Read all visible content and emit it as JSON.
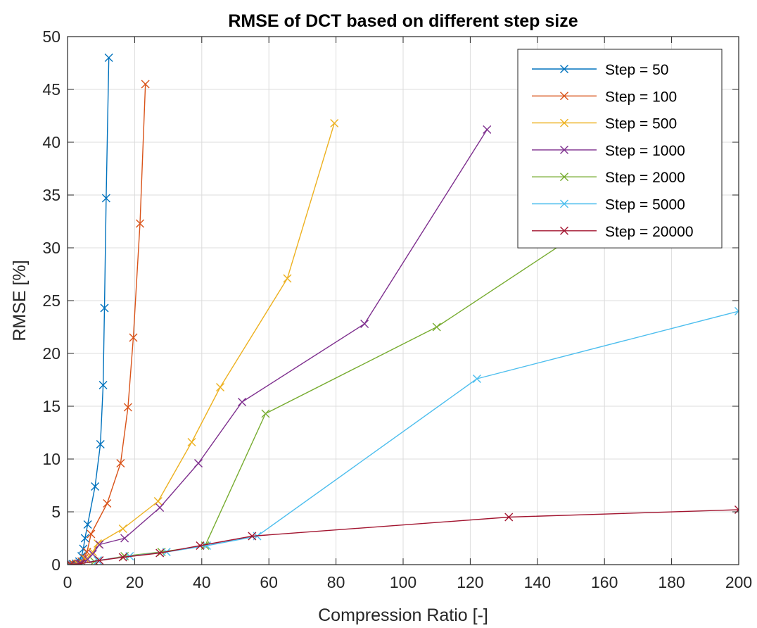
{
  "chart_data": {
    "type": "line",
    "title": "RMSE of DCT based on different step size",
    "xlabel": "Compression Ratio [-]",
    "ylabel": "RMSE [%]",
    "xlim": [
      0,
      200
    ],
    "ylim": [
      0,
      50
    ],
    "xticks": [
      0,
      20,
      40,
      60,
      80,
      100,
      120,
      140,
      160,
      180,
      200
    ],
    "yticks": [
      0,
      5,
      10,
      15,
      20,
      25,
      30,
      35,
      40,
      45,
      50
    ],
    "grid": true,
    "legend_position": "top-right",
    "marker": "x",
    "series": [
      {
        "name": "Step = 50",
        "color": "#0072BD",
        "points": [
          [
            0.5,
            0.02
          ],
          [
            1.5,
            0.05
          ],
          [
            2.5,
            0.1
          ],
          [
            3.5,
            0.3
          ],
          [
            4.2,
            0.8
          ],
          [
            4.7,
            1.5
          ],
          [
            5.2,
            2.5
          ],
          [
            6.0,
            3.8
          ],
          [
            8.2,
            7.4
          ],
          [
            9.8,
            11.4
          ],
          [
            10.6,
            17.0
          ],
          [
            11.0,
            24.3
          ],
          [
            11.5,
            34.7
          ],
          [
            12.3,
            48.0
          ]
        ]
      },
      {
        "name": "Step = 100",
        "color": "#D95319",
        "points": [
          [
            0.7,
            0.02
          ],
          [
            1.8,
            0.05
          ],
          [
            3.0,
            0.1
          ],
          [
            4.2,
            0.3
          ],
          [
            5.0,
            0.6
          ],
          [
            5.8,
            1.2
          ],
          [
            7.0,
            2.9
          ],
          [
            11.8,
            5.8
          ],
          [
            15.8,
            9.6
          ],
          [
            18.0,
            14.9
          ],
          [
            19.6,
            21.5
          ],
          [
            21.6,
            32.3
          ],
          [
            23.2,
            45.5
          ]
        ]
      },
      {
        "name": "Step = 500",
        "color": "#EDB120",
        "points": [
          [
            1.0,
            0.02
          ],
          [
            3.0,
            0.1
          ],
          [
            5.5,
            0.5
          ],
          [
            7.5,
            1.2
          ],
          [
            9.0,
            2.0
          ],
          [
            16.5,
            3.4
          ],
          [
            27.0,
            6.0
          ],
          [
            37.0,
            11.6
          ],
          [
            45.5,
            16.8
          ],
          [
            65.5,
            27.1
          ],
          [
            79.5,
            41.8
          ]
        ]
      },
      {
        "name": "Step = 1000",
        "color": "#7E2F8E",
        "points": [
          [
            1.0,
            0.02
          ],
          [
            3.5,
            0.1
          ],
          [
            6.0,
            0.5
          ],
          [
            7.5,
            1.0
          ],
          [
            9.5,
            1.9
          ],
          [
            17.0,
            2.5
          ],
          [
            27.5,
            5.4
          ],
          [
            39.0,
            9.6
          ],
          [
            52.0,
            15.4
          ],
          [
            88.5,
            22.8
          ],
          [
            125.0,
            41.2
          ]
        ]
      },
      {
        "name": "Step = 2000",
        "color": "#77AC30",
        "points": [
          [
            1.0,
            0.02
          ],
          [
            4.0,
            0.1
          ],
          [
            8.0,
            0.3
          ],
          [
            17.0,
            0.8
          ],
          [
            28.0,
            1.2
          ],
          [
            41.0,
            1.8
          ],
          [
            59.0,
            14.3
          ],
          [
            110.0,
            22.5
          ],
          [
            160.0,
            33.0
          ]
        ]
      },
      {
        "name": "Step = 5000",
        "color": "#4DBEEE",
        "points": [
          [
            1.0,
            0.02
          ],
          [
            4.0,
            0.1
          ],
          [
            9.0,
            0.4
          ],
          [
            18.5,
            0.8
          ],
          [
            29.5,
            1.2
          ],
          [
            41.5,
            1.8
          ],
          [
            56.5,
            2.7
          ],
          [
            122.0,
            17.6
          ],
          [
            200.0,
            24.0
          ]
        ]
      },
      {
        "name": "Step = 20000",
        "color": "#A2142F",
        "points": [
          [
            1.0,
            0.02
          ],
          [
            4.0,
            0.1
          ],
          [
            9.5,
            0.4
          ],
          [
            16.5,
            0.7
          ],
          [
            27.5,
            1.1
          ],
          [
            39.5,
            1.8
          ],
          [
            55.0,
            2.7
          ],
          [
            131.5,
            4.5
          ],
          [
            200.0,
            5.2
          ]
        ]
      }
    ]
  }
}
